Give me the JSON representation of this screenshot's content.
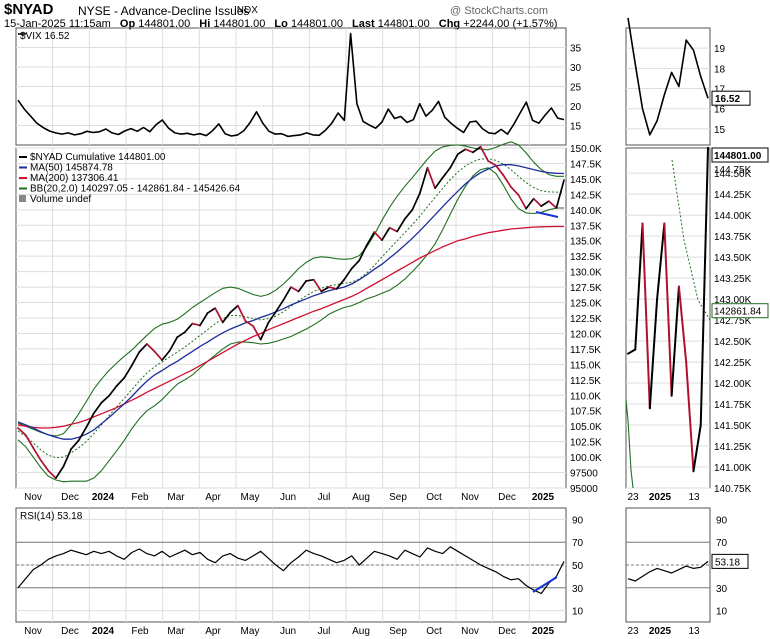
{
  "header": {
    "symbol": "$NYAD",
    "name": "NYSE - Advance-Decline Issues",
    "exchange": "INDX",
    "watermark": "@ StockCharts.com",
    "date": "15-Jan-2025 11:15am",
    "op_label": "Op",
    "op": "144801.00",
    "hi_label": "Hi",
    "hi": "144801.00",
    "lo_label": "Lo",
    "lo": "144801.00",
    "last_label": "Last",
    "last": "144801.00",
    "chg_label": "Chg",
    "chg": "+2244.00 (+1.57%)"
  },
  "colors": {
    "price": "#000000",
    "down": "#b0102f",
    "ma50": "#1c2e9c",
    "ma200": "#d01030",
    "bb": "#1f6f1f",
    "grid": "#dddddd",
    "hline": "#7a7a7a",
    "trend": "#1733d0"
  },
  "vix_panel": {
    "legend": "$VIX 16.52",
    "last_badge": "16.52",
    "ticks_main": [
      "35",
      "30",
      "25",
      "20",
      "15"
    ],
    "ticks_zoom": [
      "19",
      "18",
      "17",
      "16",
      "15"
    ]
  },
  "price_panel": {
    "legend": [
      {
        "text": "$NYAD Cumulative 144801.00",
        "color": "#000000",
        "swatch": "#000000"
      },
      {
        "text": "MA(50) 145874.78",
        "color": "#1c2e9c",
        "swatch": "#1c2e9c"
      },
      {
        "text": "MA(200) 137306.41",
        "color": "#b0102f",
        "swatch": "#d01030"
      },
      {
        "text": "BB(20,2.0) 140297.05 - 142861.84 - 145426.64",
        "color": "#1f6f1f",
        "swatch": "#1f6f1f"
      },
      {
        "text": "Volume undef",
        "color": "#444444",
        "swatch": "#888888"
      }
    ],
    "ticks_main": [
      "150.0K",
      "147.5K",
      "145.0K",
      "142.5K",
      "140.0K",
      "137.5K",
      "135.0K",
      "132.5K",
      "130.0K",
      "127.5K",
      "125.0K",
      "122.5K",
      "120.0K",
      "117.5K",
      "115.0K",
      "112.5K",
      "110.0K",
      "107.5K",
      "105.0K",
      "102.5K",
      "100.0K",
      "97500",
      "95000"
    ],
    "ticks_zoom": [
      "144.50K",
      "144.25K",
      "144.00K",
      "143.75K",
      "143.50K",
      "143.25K",
      "143.00K",
      "142.75K",
      "142.50K",
      "142.25K",
      "142.00K",
      "141.75K",
      "141.50K",
      "141.25K",
      "141.00K",
      "140.75K"
    ],
    "badge_last": "144801.00",
    "badge_bb": "142861.84",
    "zoom_partial_top": "144.75K"
  },
  "rsi_panel": {
    "legend": "RSI(14) 53.18",
    "badge": "53.18",
    "ticks": [
      "90",
      "70",
      "50",
      "30",
      "10"
    ]
  },
  "x_axis": {
    "main": [
      "Nov",
      "Dec",
      "2024",
      "Feb",
      "Mar",
      "Apr",
      "May",
      "Jun",
      "Jul",
      "Aug",
      "Sep",
      "Oct",
      "Nov",
      "Dec",
      "2025"
    ],
    "zoom": [
      "23",
      "2025",
      "13"
    ]
  },
  "chart_data": [
    {
      "type": "line",
      "title": "$VIX",
      "series": [
        {
          "name": "$VIX",
          "values": [
            21.5,
            19.2,
            17.4,
            15.6,
            14.5,
            13.6,
            13.1,
            12.8,
            13.1,
            12.6,
            12.9,
            13.5,
            13.2,
            13.4,
            14.1,
            13.1,
            12.7,
            13.6,
            14.2,
            13.5,
            14.5,
            13.4,
            15.2,
            16.4,
            14.3,
            13.1,
            12.8,
            13.0,
            12.6,
            12.9,
            12.4,
            13.7,
            15.4,
            12.9,
            12.3,
            12.6,
            13.7,
            15.8,
            18.5,
            15.6,
            13.5,
            12.8,
            12.9,
            12.2,
            12.4,
            12.6,
            13.1,
            12.6,
            12.5,
            13.8,
            15.6,
            18.2,
            16.3,
            38.6,
            20.6,
            16.0,
            15.1,
            14.3,
            15.9,
            19.2,
            16.8,
            17.3,
            15.8,
            16.5,
            20.6,
            17.4,
            18.9,
            21.2,
            17.1,
            15.6,
            14.3,
            13.2,
            15.9,
            16.1,
            14.2,
            13.1,
            12.9,
            14.0,
            12.8,
            15.3,
            18.2,
            21.0,
            16.3,
            15.6,
            17.7,
            19.5,
            16.9,
            16.52
          ]
        }
      ],
      "ticks": [
        15,
        20,
        25,
        30,
        35
      ],
      "legend": "$VIX 16.52",
      "last": 16.52
    },
    {
      "type": "line",
      "title": "$NYAD Cumulative",
      "ylim": [
        95000,
        150000
      ],
      "series": [
        {
          "name": "$NYAD Cumulative",
          "values": [
            104700,
            103600,
            101500,
            99500,
            97800,
            96600,
            98500,
            101300,
            102700,
            104800,
            107100,
            108800,
            109900,
            111500,
            112800,
            114800,
            117000,
            118300,
            117100,
            115700,
            117200,
            119400,
            120200,
            121600,
            121300,
            123300,
            124100,
            121800,
            123400,
            124500,
            122000,
            121200,
            119000,
            121700,
            123500,
            125400,
            127500,
            126800,
            128500,
            128700,
            126800,
            127500,
            127200,
            128700,
            130500,
            131800,
            134300,
            136400,
            135100,
            137100,
            136500,
            138500,
            140000,
            142700,
            146800,
            143500,
            145200,
            146800,
            149000,
            149800,
            149300,
            150200,
            147900,
            147200,
            145600,
            143700,
            142400,
            140200,
            141800,
            140600,
            141400,
            140300,
            144801
          ]
        },
        {
          "name": "MA(50)",
          "values": [
            105700,
            105200,
            104700,
            104100,
            103600,
            103200,
            102900,
            102900,
            103200,
            103700,
            104400,
            105400,
            106400,
            107500,
            108600,
            109800,
            111100,
            112300,
            113300,
            114000,
            114800,
            115500,
            116300,
            117100,
            117900,
            118600,
            119400,
            120100,
            120700,
            121200,
            121700,
            122100,
            122600,
            123000,
            123500,
            124000,
            124600,
            125100,
            125600,
            126100,
            126500,
            126900,
            127200,
            127500,
            128000,
            128700,
            129500,
            130400,
            131200,
            132200,
            133200,
            134300,
            135400,
            136600,
            137900,
            139200,
            140500,
            141800,
            143000,
            144200,
            145200,
            146000,
            146600,
            147100,
            147300,
            147300,
            147100,
            146800,
            146500,
            146200,
            146000,
            145900,
            145875
          ]
        },
        {
          "name": "MA(200)",
          "values": [
            105200,
            105000,
            104800,
            104700,
            104700,
            104800,
            105000,
            105300,
            105600,
            106000,
            106500,
            107000,
            107500,
            108000,
            108600,
            109200,
            109800,
            110500,
            111100,
            111700,
            112300,
            112900,
            113500,
            114100,
            114800,
            115500,
            116200,
            116900,
            117600,
            118300,
            118900,
            119500,
            120000,
            120600,
            121100,
            121600,
            122100,
            122600,
            123100,
            123600,
            124000,
            124500,
            125000,
            125500,
            126000,
            126600,
            127300,
            128000,
            128700,
            129400,
            130100,
            130800,
            131500,
            132200,
            132800,
            133400,
            134000,
            134500,
            135000,
            135300,
            135700,
            136000,
            136300,
            136500,
            136700,
            136900,
            137000,
            137100,
            137200,
            137250,
            137280,
            137300,
            137306
          ]
        },
        {
          "name": "BB mid",
          "values": [
            104200,
            103400,
            102300,
            101200,
            100300,
            99900,
            100000,
            100700,
            101500,
            102500,
            103800,
            105200,
            106700,
            108100,
            109500,
            110900,
            112300,
            113600,
            114600,
            115400,
            116200,
            117000,
            117800,
            118700,
            119700,
            120600,
            121600,
            122400,
            122900,
            122900,
            122700,
            122400,
            122200,
            122400,
            122800,
            123500,
            124400,
            125300,
            126100,
            126800,
            127300,
            127700,
            127900,
            128100,
            128300,
            128800,
            129800,
            131000,
            132400,
            133700,
            135000,
            136300,
            137600,
            139000,
            140500,
            142000,
            143500,
            144900,
            146100,
            147100,
            147800,
            148200,
            148300,
            148000,
            147400,
            146500,
            145400,
            144400,
            143600,
            143100,
            142900,
            142862,
            142862
          ]
        },
        {
          "name": "BB upper",
          "values": [
            105500,
            105000,
            104500,
            104000,
            103600,
            103400,
            103800,
            105200,
            107000,
            109000,
            111000,
            112600,
            114000,
            115200,
            116300,
            117300,
            118500,
            119700,
            120800,
            121500,
            121800,
            122300,
            123200,
            124200,
            125000,
            125800,
            126600,
            127300,
            127500,
            127300,
            126800,
            126300,
            126000,
            126300,
            127000,
            128000,
            129200,
            130500,
            131500,
            132200,
            132400,
            132300,
            132100,
            132000,
            132100,
            132600,
            134000,
            136000,
            138300,
            140400,
            142200,
            143800,
            145200,
            146700,
            148200,
            149500,
            150200,
            150400,
            150500,
            150300,
            150000,
            149800,
            149700,
            150100,
            150600,
            151000,
            150500,
            149200,
            147700,
            146500,
            145700,
            145430,
            145427
          ]
        },
        {
          "name": "BB lower",
          "values": [
            102800,
            101700,
            100000,
            98300,
            96900,
            96300,
            96000,
            96100,
            96100,
            96100,
            96600,
            97800,
            99400,
            101000,
            102700,
            104600,
            106200,
            107500,
            108300,
            109300,
            110600,
            111800,
            112500,
            113300,
            114400,
            115500,
            116500,
            117500,
            118300,
            118600,
            118600,
            118500,
            118300,
            118400,
            118700,
            119100,
            119500,
            120100,
            120700,
            121400,
            122200,
            123100,
            123700,
            124200,
            124500,
            125000,
            125600,
            126000,
            126500,
            127000,
            127800,
            128800,
            130000,
            131300,
            132800,
            134500,
            136800,
            139300,
            141700,
            143800,
            145500,
            146500,
            146800,
            145900,
            144000,
            141800,
            140200,
            139500,
            139400,
            139600,
            140000,
            140297,
            140297
          ]
        }
      ],
      "legend": [
        "$NYAD Cumulative 144801.00",
        "MA(50) 145874.78",
        "MA(200) 137306.41",
        "BB(20,2.0) 140297.05 - 142861.84 - 145426.64",
        "Volume undef"
      ],
      "zoom_window": {
        "ylim": [
          140750,
          144800
        ],
        "values": [
          142350,
          142400,
          143900,
          141700,
          143000,
          143900,
          141850,
          143150,
          142250,
          140950,
          141500,
          144801
        ]
      }
    },
    {
      "type": "line",
      "title": "RSI(14)",
      "ylim": [
        0,
        100
      ],
      "reference_lines": [
        70,
        50,
        30
      ],
      "series": [
        {
          "name": "RSI(14)",
          "values": [
            30,
            38,
            46,
            50,
            55,
            58,
            60,
            63,
            61,
            59,
            62,
            60,
            62,
            58,
            55,
            61,
            64,
            60,
            58,
            62,
            57,
            60,
            63,
            59,
            61,
            55,
            52,
            58,
            60,
            56,
            54,
            58,
            62,
            56,
            50,
            45,
            52,
            57,
            63,
            60,
            58,
            55,
            52,
            54,
            58,
            50,
            56,
            62,
            60,
            58,
            55,
            63,
            60,
            57,
            65,
            62,
            60,
            66,
            62,
            58,
            54,
            50,
            47,
            44,
            40,
            37,
            38,
            32,
            28,
            25,
            34,
            40,
            53.18
          ]
        }
      ],
      "legend": "RSI(14) 53.18",
      "last": 53.18
    }
  ]
}
